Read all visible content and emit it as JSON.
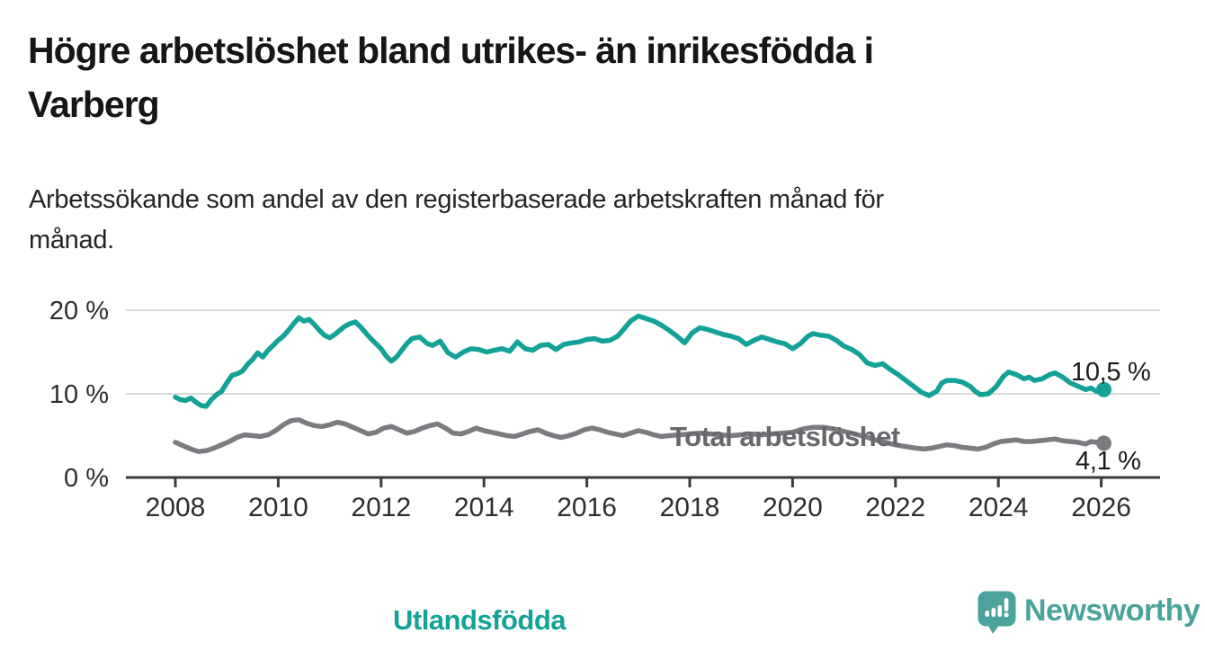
{
  "header": {
    "title": "Högre arbetslöshet bland utrikes- än inrikesfödda i\nVarberg",
    "subtitle": "Arbetssökande som andel av den registerbaserade arbetskraften månad för\nmånad."
  },
  "chart_data": {
    "type": "line",
    "title": "Högre arbetslöshet bland utrikes- än inrikesfödda i Varberg",
    "subtitle": "Arbetssökande som andel av den registerbaserade arbetskraften månad för månad.",
    "x_axis": {
      "start": 2008,
      "end": 2026,
      "ticks": [
        2008,
        2010,
        2012,
        2014,
        2016,
        2018,
        2020,
        2022,
        2024,
        2026
      ]
    },
    "y_axis": {
      "unit": "%",
      "range": [
        0,
        21
      ],
      "gridlines": [
        10,
        20
      ],
      "ticks": [
        {
          "value": 0,
          "label": "0 %"
        },
        {
          "value": 10,
          "label": "10 %"
        },
        {
          "value": 20,
          "label": "20 %"
        }
      ]
    },
    "style": {
      "grid_color": "#d9d9d9",
      "axis_color": "#3c3c3c",
      "text_color": "#2e2e2e"
    },
    "legend_position": "inline-labels",
    "series": [
      {
        "name": "Utlandsfödda",
        "color": "#14a297",
        "end_label": "10,5 %",
        "end_value": 10.5,
        "points": [
          [
            2008.0,
            9.6
          ],
          [
            2008.1,
            9.3
          ],
          [
            2008.2,
            9.2
          ],
          [
            2008.3,
            9.5
          ],
          [
            2008.4,
            9.0
          ],
          [
            2008.5,
            8.6
          ],
          [
            2008.6,
            8.5
          ],
          [
            2008.7,
            9.3
          ],
          [
            2008.8,
            9.9
          ],
          [
            2008.9,
            10.3
          ],
          [
            2009.0,
            11.3
          ],
          [
            2009.1,
            12.2
          ],
          [
            2009.2,
            12.4
          ],
          [
            2009.3,
            12.7
          ],
          [
            2009.4,
            13.5
          ],
          [
            2009.5,
            14.1
          ],
          [
            2009.6,
            14.9
          ],
          [
            2009.7,
            14.4
          ],
          [
            2009.8,
            15.2
          ],
          [
            2009.9,
            15.8
          ],
          [
            2010.0,
            16.4
          ],
          [
            2010.1,
            16.9
          ],
          [
            2010.2,
            17.6
          ],
          [
            2010.3,
            18.4
          ],
          [
            2010.4,
            19.1
          ],
          [
            2010.5,
            18.7
          ],
          [
            2010.6,
            18.9
          ],
          [
            2010.7,
            18.3
          ],
          [
            2010.8,
            17.6
          ],
          [
            2010.9,
            17.0
          ],
          [
            2011.0,
            16.7
          ],
          [
            2011.1,
            17.1
          ],
          [
            2011.2,
            17.6
          ],
          [
            2011.3,
            18.1
          ],
          [
            2011.4,
            18.4
          ],
          [
            2011.5,
            18.6
          ],
          [
            2011.6,
            18.0
          ],
          [
            2011.7,
            17.3
          ],
          [
            2011.8,
            16.6
          ],
          [
            2011.9,
            16.0
          ],
          [
            2012.0,
            15.4
          ],
          [
            2012.1,
            14.5
          ],
          [
            2012.2,
            13.9
          ],
          [
            2012.3,
            14.4
          ],
          [
            2012.4,
            15.2
          ],
          [
            2012.5,
            16.0
          ],
          [
            2012.6,
            16.6
          ],
          [
            2012.75,
            16.8
          ],
          [
            2012.9,
            16.0
          ],
          [
            2013.0,
            15.8
          ],
          [
            2013.15,
            16.3
          ],
          [
            2013.3,
            14.9
          ],
          [
            2013.45,
            14.4
          ],
          [
            2013.6,
            15.0
          ],
          [
            2013.75,
            15.4
          ],
          [
            2013.9,
            15.3
          ],
          [
            2014.05,
            15.0
          ],
          [
            2014.2,
            15.2
          ],
          [
            2014.35,
            15.4
          ],
          [
            2014.5,
            15.1
          ],
          [
            2014.65,
            16.2
          ],
          [
            2014.8,
            15.4
          ],
          [
            2014.95,
            15.2
          ],
          [
            2015.1,
            15.8
          ],
          [
            2015.25,
            15.9
          ],
          [
            2015.4,
            15.3
          ],
          [
            2015.55,
            15.9
          ],
          [
            2015.7,
            16.1
          ],
          [
            2015.85,
            16.2
          ],
          [
            2016.0,
            16.5
          ],
          [
            2016.15,
            16.6
          ],
          [
            2016.3,
            16.3
          ],
          [
            2016.45,
            16.4
          ],
          [
            2016.6,
            16.9
          ],
          [
            2016.7,
            17.6
          ],
          [
            2016.85,
            18.7
          ],
          [
            2017.0,
            19.3
          ],
          [
            2017.15,
            19.0
          ],
          [
            2017.3,
            18.7
          ],
          [
            2017.45,
            18.2
          ],
          [
            2017.6,
            17.6
          ],
          [
            2017.75,
            16.9
          ],
          [
            2017.9,
            16.1
          ],
          [
            2018.05,
            17.3
          ],
          [
            2018.2,
            17.9
          ],
          [
            2018.35,
            17.7
          ],
          [
            2018.5,
            17.4
          ],
          [
            2018.65,
            17.1
          ],
          [
            2018.8,
            16.9
          ],
          [
            2018.95,
            16.6
          ],
          [
            2019.1,
            15.9
          ],
          [
            2019.25,
            16.4
          ],
          [
            2019.4,
            16.8
          ],
          [
            2019.55,
            16.5
          ],
          [
            2019.7,
            16.2
          ],
          [
            2019.85,
            16.0
          ],
          [
            2020.0,
            15.4
          ],
          [
            2020.15,
            16.0
          ],
          [
            2020.3,
            16.9
          ],
          [
            2020.4,
            17.2
          ],
          [
            2020.55,
            17.0
          ],
          [
            2020.7,
            16.9
          ],
          [
            2020.85,
            16.4
          ],
          [
            2021.0,
            15.7
          ],
          [
            2021.15,
            15.3
          ],
          [
            2021.3,
            14.7
          ],
          [
            2021.45,
            13.7
          ],
          [
            2021.6,
            13.4
          ],
          [
            2021.75,
            13.6
          ],
          [
            2021.9,
            12.9
          ],
          [
            2022.05,
            12.3
          ],
          [
            2022.2,
            11.6
          ],
          [
            2022.35,
            10.9
          ],
          [
            2022.5,
            10.2
          ],
          [
            2022.65,
            9.8
          ],
          [
            2022.8,
            10.3
          ],
          [
            2022.9,
            11.3
          ],
          [
            2023.0,
            11.6
          ],
          [
            2023.15,
            11.6
          ],
          [
            2023.3,
            11.4
          ],
          [
            2023.45,
            10.9
          ],
          [
            2023.55,
            10.3
          ],
          [
            2023.65,
            9.9
          ],
          [
            2023.8,
            10.0
          ],
          [
            2023.95,
            10.8
          ],
          [
            2024.1,
            12.1
          ],
          [
            2024.2,
            12.6
          ],
          [
            2024.35,
            12.3
          ],
          [
            2024.5,
            11.8
          ],
          [
            2024.6,
            12.0
          ],
          [
            2024.7,
            11.6
          ],
          [
            2024.85,
            11.8
          ],
          [
            2025.0,
            12.3
          ],
          [
            2025.1,
            12.5
          ],
          [
            2025.25,
            12.0
          ],
          [
            2025.4,
            11.3
          ],
          [
            2025.55,
            10.9
          ],
          [
            2025.7,
            10.5
          ],
          [
            2025.8,
            10.7
          ],
          [
            2025.9,
            10.3
          ],
          [
            2026.05,
            10.5
          ]
        ]
      },
      {
        "name": "Total arbetslöshet",
        "color": "#7b7b80",
        "end_label": "4,1 %",
        "end_value": 4.1,
        "points": [
          [
            2008.0,
            4.2
          ],
          [
            2008.15,
            3.8
          ],
          [
            2008.3,
            3.4
          ],
          [
            2008.45,
            3.1
          ],
          [
            2008.6,
            3.2
          ],
          [
            2008.75,
            3.5
          ],
          [
            2008.9,
            3.9
          ],
          [
            2009.05,
            4.3
          ],
          [
            2009.2,
            4.8
          ],
          [
            2009.35,
            5.1
          ],
          [
            2009.5,
            5.0
          ],
          [
            2009.65,
            4.9
          ],
          [
            2009.8,
            5.1
          ],
          [
            2009.95,
            5.6
          ],
          [
            2010.1,
            6.3
          ],
          [
            2010.25,
            6.8
          ],
          [
            2010.4,
            6.9
          ],
          [
            2010.55,
            6.5
          ],
          [
            2010.7,
            6.2
          ],
          [
            2010.85,
            6.1
          ],
          [
            2011.0,
            6.3
          ],
          [
            2011.15,
            6.6
          ],
          [
            2011.3,
            6.4
          ],
          [
            2011.45,
            6.0
          ],
          [
            2011.6,
            5.6
          ],
          [
            2011.75,
            5.2
          ],
          [
            2011.9,
            5.4
          ],
          [
            2012.05,
            5.9
          ],
          [
            2012.2,
            6.1
          ],
          [
            2012.35,
            5.7
          ],
          [
            2012.5,
            5.3
          ],
          [
            2012.65,
            5.5
          ],
          [
            2012.8,
            5.9
          ],
          [
            2012.95,
            6.2
          ],
          [
            2013.1,
            6.4
          ],
          [
            2013.25,
            5.9
          ],
          [
            2013.4,
            5.3
          ],
          [
            2013.55,
            5.2
          ],
          [
            2013.7,
            5.5
          ],
          [
            2013.85,
            5.9
          ],
          [
            2014.0,
            5.6
          ],
          [
            2014.15,
            5.4
          ],
          [
            2014.3,
            5.2
          ],
          [
            2014.45,
            5.0
          ],
          [
            2014.6,
            4.9
          ],
          [
            2014.75,
            5.2
          ],
          [
            2014.9,
            5.5
          ],
          [
            2015.05,
            5.7
          ],
          [
            2015.2,
            5.3
          ],
          [
            2015.35,
            5.0
          ],
          [
            2015.5,
            4.8
          ],
          [
            2015.65,
            5.0
          ],
          [
            2015.8,
            5.3
          ],
          [
            2015.95,
            5.7
          ],
          [
            2016.1,
            5.9
          ],
          [
            2016.25,
            5.7
          ],
          [
            2016.4,
            5.4
          ],
          [
            2016.55,
            5.2
          ],
          [
            2016.7,
            5.0
          ],
          [
            2016.85,
            5.3
          ],
          [
            2017.0,
            5.6
          ],
          [
            2017.15,
            5.4
          ],
          [
            2017.3,
            5.1
          ],
          [
            2017.45,
            4.9
          ],
          [
            2017.6,
            5.0
          ],
          [
            2017.8,
            5.1
          ],
          [
            2018.0,
            5.2
          ],
          [
            2018.2,
            5.3
          ],
          [
            2018.4,
            5.2
          ],
          [
            2018.6,
            5.1
          ],
          [
            2018.8,
            5.0
          ],
          [
            2019.0,
            5.1
          ],
          [
            2019.2,
            5.2
          ],
          [
            2019.4,
            5.1
          ],
          [
            2019.6,
            5.2
          ],
          [
            2019.8,
            5.3
          ],
          [
            2020.0,
            5.4
          ],
          [
            2020.2,
            5.8
          ],
          [
            2020.4,
            6.0
          ],
          [
            2020.6,
            6.0
          ],
          [
            2020.8,
            5.8
          ],
          [
            2021.0,
            5.5
          ],
          [
            2021.2,
            5.2
          ],
          [
            2021.4,
            4.9
          ],
          [
            2021.6,
            4.5
          ],
          [
            2021.8,
            4.2
          ],
          [
            2022.0,
            3.9
          ],
          [
            2022.2,
            3.7
          ],
          [
            2022.4,
            3.5
          ],
          [
            2022.55,
            3.4
          ],
          [
            2022.7,
            3.5
          ],
          [
            2022.85,
            3.7
          ],
          [
            2023.0,
            3.9
          ],
          [
            2023.15,
            3.8
          ],
          [
            2023.3,
            3.6
          ],
          [
            2023.45,
            3.5
          ],
          [
            2023.6,
            3.4
          ],
          [
            2023.75,
            3.6
          ],
          [
            2023.9,
            4.0
          ],
          [
            2024.05,
            4.3
          ],
          [
            2024.2,
            4.4
          ],
          [
            2024.35,
            4.5
          ],
          [
            2024.5,
            4.3
          ],
          [
            2024.65,
            4.3
          ],
          [
            2024.8,
            4.4
          ],
          [
            2024.95,
            4.5
          ],
          [
            2025.1,
            4.6
          ],
          [
            2025.25,
            4.4
          ],
          [
            2025.4,
            4.3
          ],
          [
            2025.55,
            4.2
          ],
          [
            2025.7,
            4.0
          ],
          [
            2025.8,
            4.3
          ],
          [
            2025.9,
            4.2
          ],
          [
            2026.05,
            4.1
          ]
        ]
      }
    ]
  },
  "footer": {
    "brand": "Newsworthy",
    "brand_color": "#4ba39c"
  }
}
